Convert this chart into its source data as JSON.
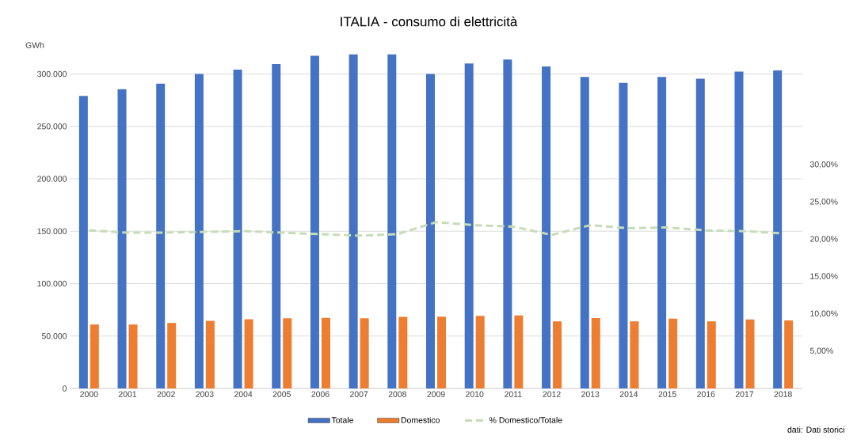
{
  "chart_data": {
    "type": "bar",
    "title": "ITALIA - consumo di elettricità",
    "ylabel": "GWh",
    "categories": [
      "2000",
      "2001",
      "2002",
      "2003",
      "2004",
      "2005",
      "2006",
      "2007",
      "2008",
      "2009",
      "2010",
      "2011",
      "2012",
      "2013",
      "2014",
      "2015",
      "2016",
      "2017",
      "2018"
    ],
    "series": [
      {
        "name": "Totale",
        "color": "#4472c4",
        "values": [
          279000,
          285500,
          290700,
          300000,
          304200,
          309400,
          317400,
          318700,
          318700,
          300000,
          309900,
          313800,
          307100,
          297200,
          291500,
          297200,
          295400,
          302200,
          303400
        ]
      },
      {
        "name": "Domestico",
        "color": "#ed7d31",
        "values": [
          61000,
          61000,
          62500,
          64600,
          66100,
          66900,
          67400,
          66900,
          68200,
          68400,
          69200,
          69700,
          64000,
          67100,
          64000,
          66600,
          64000,
          65800,
          64800
        ]
      },
      {
        "name": "% Domestico/Totale",
        "type": "line",
        "axis": "y2",
        "line_style": "dashed",
        "color": "#c5dcb6",
        "values": [
          21.2,
          20.9,
          20.9,
          21.0,
          21.1,
          20.9,
          20.7,
          20.5,
          20.7,
          22.3,
          21.9,
          21.7,
          20.6,
          21.9,
          21.5,
          21.6,
          21.2,
          21.1,
          20.8
        ]
      }
    ],
    "ylim": [
      0,
      320000
    ],
    "yticks": [
      0,
      {
        "value": 50000,
        "label": "50.000"
      },
      {
        "value": 100000,
        "label": "100.000"
      },
      {
        "value": 150000,
        "label": "150.000"
      },
      {
        "value": 200000,
        "label": "200.000"
      },
      {
        "value": 250000,
        "label": "250.000"
      },
      {
        "value": 300000,
        "label": "300.000"
      }
    ],
    "y2lim": [
      0,
      45
    ],
    "y2ticks": [
      {
        "value": 5,
        "label": "5,00%"
      },
      {
        "value": 10,
        "label": "10,00%"
      },
      {
        "value": 15,
        "label": "15,00%"
      },
      {
        "value": 20,
        "label": "20,00%"
      },
      {
        "value": 25,
        "label": "25,00%"
      },
      {
        "value": 30,
        "label": "30,00%"
      }
    ],
    "grid": "y",
    "legend": "bottom",
    "annotations": [
      "dati: Dati storici"
    ]
  }
}
